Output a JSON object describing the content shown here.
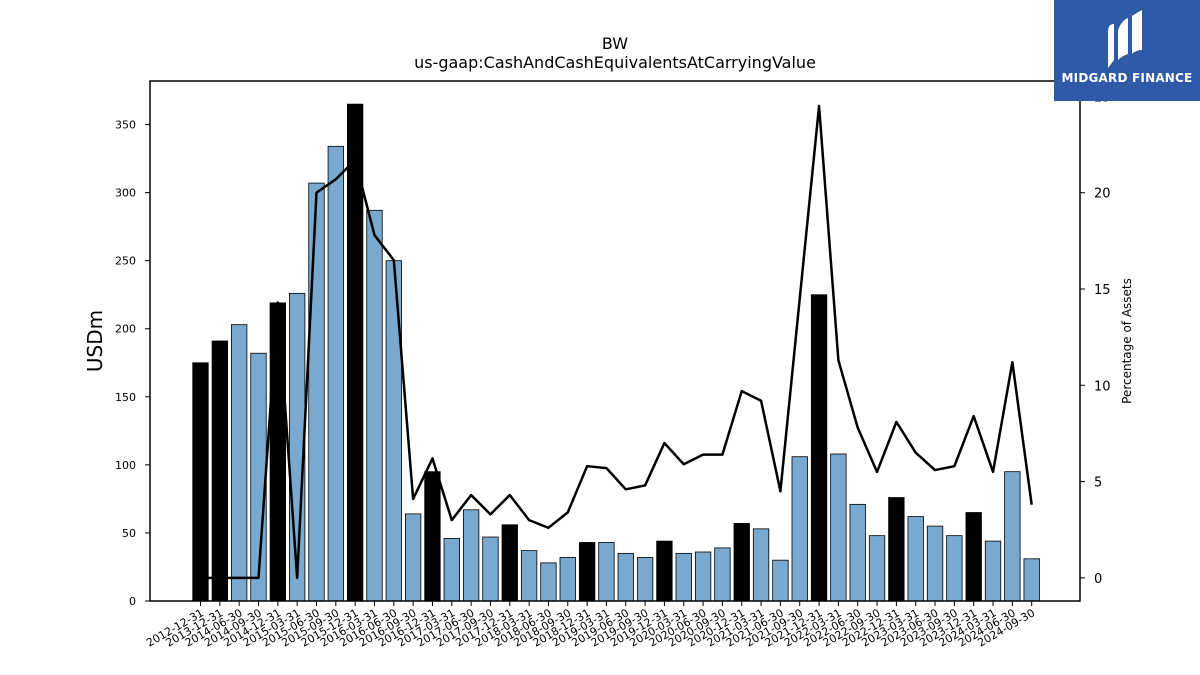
{
  "logo": {
    "text": "MIDGARD FINANCE"
  },
  "chart_data": {
    "type": "bar",
    "title": "BW",
    "subtitle": "us-gaap:CashAndCashEquivalentsAtCarryingValue",
    "ylabel": "USDm",
    "y2label": "Percentage of Assets",
    "ylim": [
      0,
      382
    ],
    "y2lim": [
      -1.2,
      25.8
    ],
    "yticks": [
      0,
      50,
      100,
      150,
      200,
      250,
      300,
      350
    ],
    "y2ticks": [
      0,
      5,
      10,
      15,
      20,
      25
    ],
    "categories": [
      "2012-12-31",
      "2013-12-31",
      "2014-06-30",
      "2014-09-30",
      "2014-12-31",
      "2015-03-31",
      "2015-06-30",
      "2015-09-30",
      "2015-12-31",
      "2016-03-31",
      "2016-06-30",
      "2016-09-30",
      "2016-12-31",
      "2017-03-31",
      "2017-06-30",
      "2017-09-30",
      "2017-12-31",
      "2018-03-31",
      "2018-06-30",
      "2018-09-30",
      "2018-12-31",
      "2019-03-31",
      "2019-06-30",
      "2019-09-30",
      "2019-12-31",
      "2020-03-31",
      "2020-06-30",
      "2020-09-30",
      "2020-12-31",
      "2021-03-31",
      "2021-06-30",
      "2021-09-30",
      "2021-12-31",
      "2022-03-31",
      "2022-06-30",
      "2022-09-30",
      "2022-12-31",
      "2023-03-31",
      "2023-06-30",
      "2023-09-30",
      "2023-12-31",
      "2024-03-31",
      "2024-06-30",
      "2024-09-30"
    ],
    "series": [
      {
        "type": "bar",
        "values": [
          175,
          191,
          203,
          182,
          219,
          226,
          307,
          334,
          365,
          287,
          250,
          64,
          95,
          46,
          67,
          47,
          56,
          37,
          28,
          32,
          43,
          43,
          35,
          32,
          44,
          35,
          36,
          39,
          57,
          53,
          30,
          106,
          225,
          108,
          71,
          48,
          76,
          62,
          55,
          48,
          65,
          44,
          95,
          31
        ],
        "highlight": [
          true,
          true,
          false,
          false,
          true,
          false,
          false,
          false,
          true,
          false,
          false,
          false,
          true,
          false,
          false,
          false,
          true,
          false,
          false,
          false,
          true,
          false,
          false,
          false,
          true,
          false,
          false,
          false,
          true,
          false,
          false,
          false,
          true,
          false,
          false,
          false,
          true,
          false,
          false,
          false,
          true,
          false,
          false,
          false
        ],
        "color": "#7aa9d0",
        "highlight_color": "#000000"
      },
      {
        "type": "line",
        "axis": "right",
        "values": [
          0,
          0,
          0,
          0,
          14.3,
          0,
          20.0,
          20.7,
          21.7,
          17.8,
          16.5,
          4.1,
          6.2,
          3.0,
          4.3,
          3.3,
          4.3,
          3.0,
          2.6,
          3.4,
          5.8,
          5.7,
          4.6,
          4.8,
          7.0,
          5.9,
          6.4,
          6.4,
          9.7,
          9.2,
          4.5,
          14.5,
          24.5,
          11.3,
          7.8,
          5.5,
          8.1,
          6.5,
          5.6,
          5.8,
          8.4,
          5.5,
          11.2,
          3.8
        ],
        "color": "#000000"
      }
    ],
    "grid": false,
    "legend": "none"
  }
}
